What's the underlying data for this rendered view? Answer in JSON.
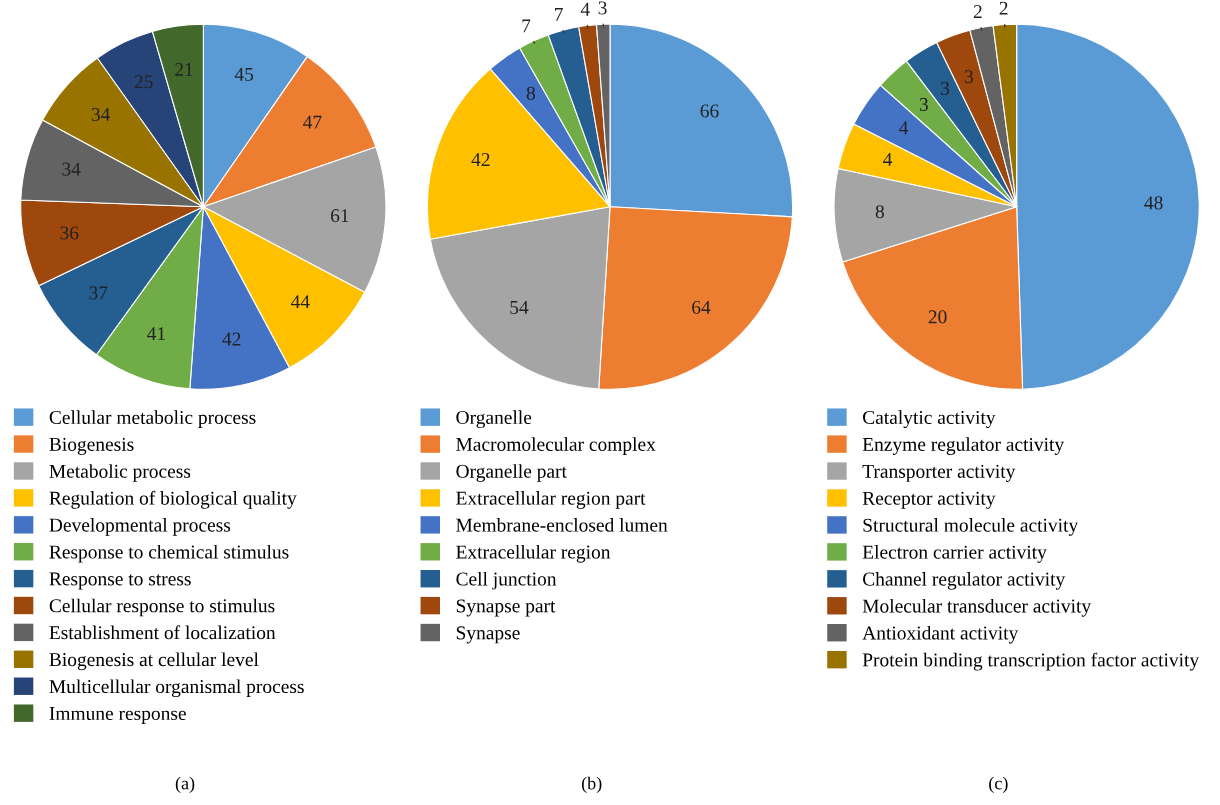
{
  "chart_data": [
    {
      "type": "pie",
      "legend": "bottom",
      "data_labels": true,
      "annotations": [
        "(a)"
      ],
      "categories": [
        "Cellular metabolic process",
        "Biogenesis",
        "Metabolic process",
        "Regulation of biological quality",
        "Developmental process",
        "Response to chemical stimulus",
        "Response to stress",
        "Cellular response to stimulus",
        "Establishment of localization",
        "Biogenesis at cellular level",
        "Multicellular organismal process",
        "Immune response"
      ],
      "values": [
        45,
        47,
        61,
        44,
        42,
        41,
        37,
        36,
        34,
        34,
        25,
        21
      ],
      "colors": [
        "#5b9bd5",
        "#ed7d31",
        "#a5a5a5",
        "#ffc000",
        "#4472c4",
        "#70ad47",
        "#255e91",
        "#9e480e",
        "#636363",
        "#997300",
        "#264478",
        "#43682b"
      ]
    },
    {
      "type": "pie",
      "legend": "bottom",
      "data_labels": true,
      "annotations": [
        "(b)"
      ],
      "categories": [
        "Organelle",
        "Macromolecular complex",
        "Organelle part",
        "Extracellular region part",
        "Membrane-enclosed lumen",
        "Extracellular region",
        "Cell junction",
        "Synapse part",
        "Synapse"
      ],
      "values": [
        66,
        64,
        54,
        42,
        8,
        7,
        7,
        4,
        3
      ],
      "colors": [
        "#5b9bd5",
        "#ed7d31",
        "#a5a5a5",
        "#ffc000",
        "#4472c4",
        "#70ad47",
        "#255e91",
        "#9e480e",
        "#636363"
      ]
    },
    {
      "type": "pie",
      "legend": "bottom",
      "data_labels": true,
      "annotations": [
        "(c)"
      ],
      "categories": [
        "Catalytic activity",
        "Enzyme regulator activity",
        "Transporter activity",
        "Receptor activity",
        "Structural molecule activity",
        "Electron carrier activity",
        "Channel regulator activity",
        "Molecular transducer activity",
        "Antioxidant activity",
        "Protein binding transcription factor activity"
      ],
      "values": [
        48,
        20,
        8,
        4,
        4,
        3,
        3,
        3,
        2,
        2
      ],
      "colors": [
        "#5b9bd5",
        "#ed7d31",
        "#a5a5a5",
        "#ffc000",
        "#4472c4",
        "#70ad47",
        "#255e91",
        "#9e480e",
        "#636363",
        "#997300"
      ]
    }
  ]
}
